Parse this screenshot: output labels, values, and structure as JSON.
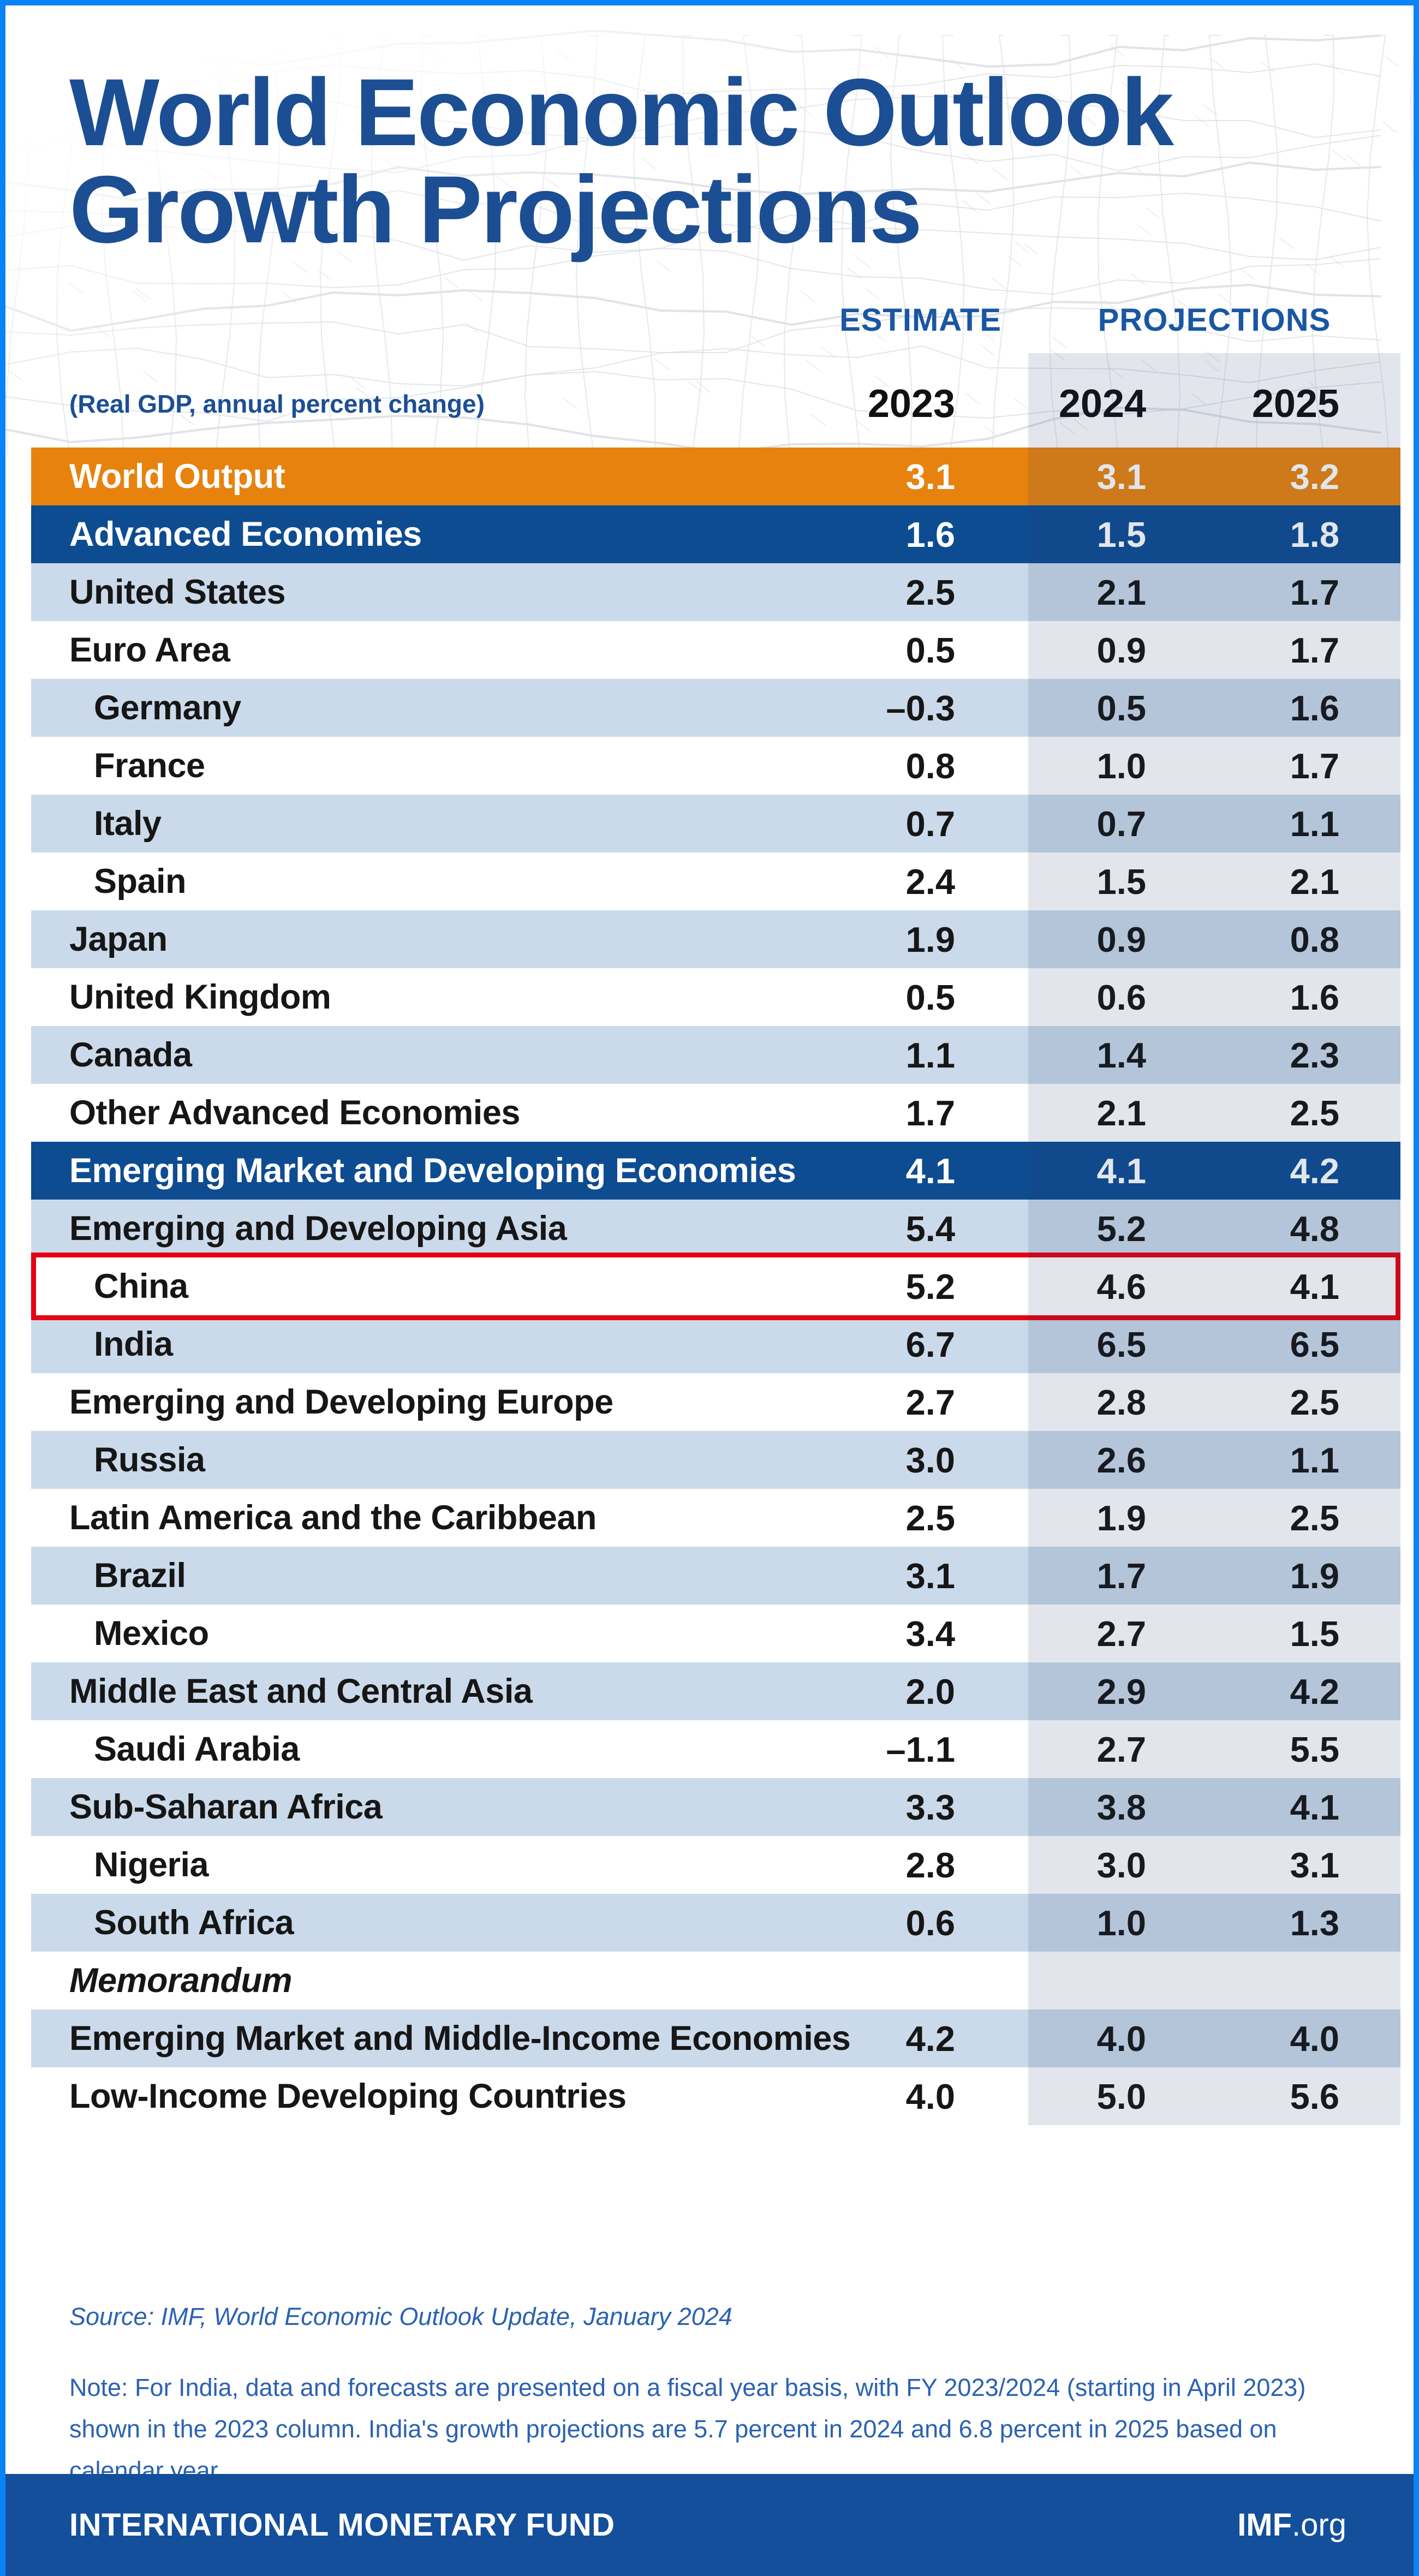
{
  "header": {
    "title_line1": "World Economic Outlook",
    "title_line2": "Growth Projections",
    "subtitle": "(Real GDP, annual percent change)",
    "estimate_label": "ESTIMATE",
    "projections_label": "PROJECTIONS",
    "years": [
      "2023",
      "2024",
      "2025"
    ]
  },
  "table": {
    "rows": [
      {
        "label": "World Output",
        "type": "orange-header",
        "indent": false,
        "values": [
          "3.1",
          "3.1",
          "3.2"
        ]
      },
      {
        "label": "Advanced Economies",
        "type": "section-header",
        "indent": false,
        "values": [
          "1.6",
          "1.5",
          "1.8"
        ]
      },
      {
        "label": "United States",
        "type": "shaded",
        "indent": false,
        "values": [
          "2.5",
          "2.1",
          "1.7"
        ]
      },
      {
        "label": "Euro Area",
        "type": "plain",
        "indent": false,
        "values": [
          "0.5",
          "0.9",
          "1.7"
        ]
      },
      {
        "label": "Germany",
        "type": "shaded",
        "indent": true,
        "values": [
          "–0.3",
          "0.5",
          "1.6"
        ]
      },
      {
        "label": "France",
        "type": "plain",
        "indent": true,
        "values": [
          "0.8",
          "1.0",
          "1.7"
        ]
      },
      {
        "label": "Italy",
        "type": "shaded",
        "indent": true,
        "values": [
          "0.7",
          "0.7",
          "1.1"
        ]
      },
      {
        "label": "Spain",
        "type": "plain",
        "indent": true,
        "values": [
          "2.4",
          "1.5",
          "2.1"
        ]
      },
      {
        "label": "Japan",
        "type": "shaded",
        "indent": false,
        "values": [
          "1.9",
          "0.9",
          "0.8"
        ]
      },
      {
        "label": "United Kingdom",
        "type": "plain",
        "indent": false,
        "values": [
          "0.5",
          "0.6",
          "1.6"
        ]
      },
      {
        "label": "Canada",
        "type": "shaded",
        "indent": false,
        "values": [
          "1.1",
          "1.4",
          "2.3"
        ]
      },
      {
        "label": "Other Advanced Economies",
        "type": "plain",
        "indent": false,
        "values": [
          "1.7",
          "2.1",
          "2.5"
        ]
      },
      {
        "label": "Emerging Market and Developing Economies",
        "type": "section-header",
        "indent": false,
        "values": [
          "4.1",
          "4.1",
          "4.2"
        ]
      },
      {
        "label": "Emerging and Developing Asia",
        "type": "shaded",
        "indent": false,
        "values": [
          "5.4",
          "5.2",
          "4.8"
        ]
      },
      {
        "label": "China",
        "type": "plain",
        "indent": true,
        "highlighted": true,
        "values": [
          "5.2",
          "4.6",
          "4.1"
        ]
      },
      {
        "label": "India",
        "type": "shaded",
        "indent": true,
        "values": [
          "6.7",
          "6.5",
          "6.5"
        ]
      },
      {
        "label": "Emerging and Developing Europe",
        "type": "plain",
        "indent": false,
        "values": [
          "2.7",
          "2.8",
          "2.5"
        ]
      },
      {
        "label": "Russia",
        "type": "shaded",
        "indent": true,
        "values": [
          "3.0",
          "2.6",
          "1.1"
        ]
      },
      {
        "label": "Latin America and the Caribbean",
        "type": "plain",
        "indent": false,
        "values": [
          "2.5",
          "1.9",
          "2.5"
        ]
      },
      {
        "label": "Brazil",
        "type": "shaded",
        "indent": true,
        "values": [
          "3.1",
          "1.7",
          "1.9"
        ]
      },
      {
        "label": "Mexico",
        "type": "plain",
        "indent": true,
        "values": [
          "3.4",
          "2.7",
          "1.5"
        ]
      },
      {
        "label": "Middle East and Central Asia",
        "type": "shaded",
        "indent": false,
        "values": [
          "2.0",
          "2.9",
          "4.2"
        ]
      },
      {
        "label": "Saudi Arabia",
        "type": "plain",
        "indent": true,
        "values": [
          "–1.1",
          "2.7",
          "5.5"
        ]
      },
      {
        "label": "Sub-Saharan Africa",
        "type": "shaded",
        "indent": false,
        "values": [
          "3.3",
          "3.8",
          "4.1"
        ]
      },
      {
        "label": "Nigeria",
        "type": "plain",
        "indent": true,
        "values": [
          "2.8",
          "3.0",
          "3.1"
        ]
      },
      {
        "label": "South Africa",
        "type": "shaded",
        "indent": true,
        "values": [
          "0.6",
          "1.0",
          "1.3"
        ]
      },
      {
        "label": "Memorandum",
        "type": "memo",
        "indent": false,
        "values": [
          "",
          "",
          ""
        ]
      },
      {
        "label": "Emerging Market and Middle-Income Economies",
        "type": "shaded",
        "indent": false,
        "values": [
          "4.2",
          "4.0",
          "4.0"
        ]
      },
      {
        "label": "Low-Income Developing Countries",
        "type": "plain",
        "indent": false,
        "values": [
          "4.0",
          "5.0",
          "5.6"
        ]
      }
    ]
  },
  "chart_data": {
    "type": "table",
    "title": "World Economic Outlook Growth Projections",
    "subtitle": "(Real GDP, annual percent change)",
    "columns": [
      "2023 (Estimate)",
      "2024 (Projections)",
      "2025 (Projections)"
    ],
    "highlighted_row": "China",
    "rows": [
      [
        "World Output",
        3.1,
        3.1,
        3.2
      ],
      [
        "Advanced Economies",
        1.6,
        1.5,
        1.8
      ],
      [
        "United States",
        2.5,
        2.1,
        1.7
      ],
      [
        "Euro Area",
        0.5,
        0.9,
        1.7
      ],
      [
        "Germany",
        -0.3,
        0.5,
        1.6
      ],
      [
        "France",
        0.8,
        1.0,
        1.7
      ],
      [
        "Italy",
        0.7,
        0.7,
        1.1
      ],
      [
        "Spain",
        2.4,
        1.5,
        2.1
      ],
      [
        "Japan",
        1.9,
        0.9,
        0.8
      ],
      [
        "United Kingdom",
        0.5,
        0.6,
        1.6
      ],
      [
        "Canada",
        1.1,
        1.4,
        2.3
      ],
      [
        "Other Advanced Economies",
        1.7,
        2.1,
        2.5
      ],
      [
        "Emerging Market and Developing Economies",
        4.1,
        4.1,
        4.2
      ],
      [
        "Emerging and Developing Asia",
        5.4,
        5.2,
        4.8
      ],
      [
        "China",
        5.2,
        4.6,
        4.1
      ],
      [
        "India",
        6.7,
        6.5,
        6.5
      ],
      [
        "Emerging and Developing Europe",
        2.7,
        2.8,
        2.5
      ],
      [
        "Russia",
        3.0,
        2.6,
        1.1
      ],
      [
        "Latin America and the Caribbean",
        2.5,
        1.9,
        2.5
      ],
      [
        "Brazil",
        3.1,
        1.7,
        1.9
      ],
      [
        "Mexico",
        3.4,
        2.7,
        1.5
      ],
      [
        "Middle East and Central Asia",
        2.0,
        2.9,
        4.2
      ],
      [
        "Saudi Arabia",
        -1.1,
        2.7,
        5.5
      ],
      [
        "Sub-Saharan Africa",
        3.3,
        3.8,
        4.1
      ],
      [
        "Nigeria",
        2.8,
        3.0,
        3.1
      ],
      [
        "South Africa",
        0.6,
        1.0,
        1.3
      ],
      [
        "Emerging Market and Middle-Income Economies",
        4.2,
        4.0,
        4.0
      ],
      [
        "Low-Income Developing Countries",
        4.0,
        5.0,
        5.6
      ]
    ]
  },
  "source": {
    "prefix": "Source: IMF, ",
    "publication": "World Economic Outlook Update",
    "suffix": ", January 2024"
  },
  "note": {
    "text": "Note: For India, data and forecasts are presented on a fiscal year basis, with FY 2023/2024 (starting in April 2023) shown in the 2023 column. India's growth projections are 5.7 percent in 2024 and 6.8 percent in 2025 based on calendar year."
  },
  "footer": {
    "org_name": "INTERNATIONAL MONETARY FUND",
    "site_bold": "IMF",
    "site_suffix": ".org"
  },
  "colors": {
    "border_blue": "#0a83f6",
    "title_blue": "#1c4e94",
    "column_label_blue": "#1a57a2",
    "orange_row": "#e8820e",
    "section_blue": "#0e4c92",
    "light_row": "#cbdaea",
    "projection_band_tint": "rgba(28,58,112,0.13)",
    "highlight_red": "#e60012",
    "source_blue": "#2b62b2",
    "footer_blue": "#134f9b",
    "mesh_gray": "#c6cbd4"
  }
}
